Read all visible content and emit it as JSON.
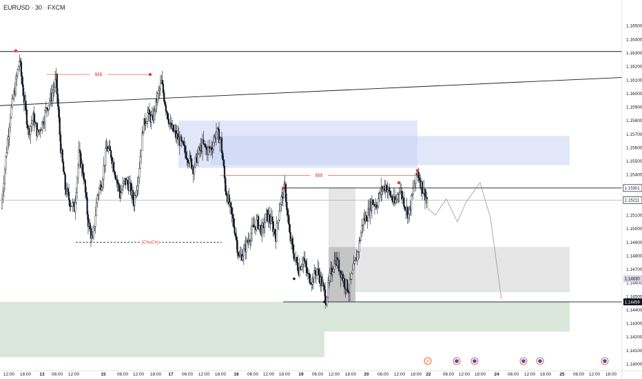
{
  "header": {
    "title": "EURUSD · 30 · FXCM"
  },
  "colors": {
    "bull": "#131722",
    "bear": "#131722",
    "blue_zone": "#c5d1f2",
    "gray_zone": "#dcdcdc",
    "green_zone": "#c8dcc8",
    "annotation": "#e53935",
    "marker": "#e53935"
  },
  "chart_data": {
    "type": "candlestick",
    "symbol": "EURUSD",
    "timeframe": "30",
    "source": "FXCM",
    "ylim": [
      1.1395,
      1.1665
    ],
    "y_ticks": [
      "1.16500",
      "1.16400",
      "1.16300",
      "1.16200",
      "1.16100",
      "1.16000",
      "1.15900",
      "1.15800",
      "1.15700",
      "1.15600",
      "1.15500",
      "1.15400",
      "1.15300",
      "1.15200",
      "1.15100",
      "1.15000",
      "1.14900",
      "1.14800",
      "1.14700",
      "1.14600",
      "1.14500",
      "1.14400",
      "1.14300",
      "1.14200",
      "1.14100",
      "1.14000"
    ],
    "x_ticks": [
      "12:00",
      "18:00",
      "13",
      "06:00",
      "12:00",
      "15",
      "06:00",
      "12:00",
      "18:00",
      "17",
      "06:00",
      "12:00",
      "18:00",
      "18",
      "06:00",
      "12:00",
      "18:00",
      "19",
      "06:00",
      "12:00",
      "18:00",
      "20",
      "06:00",
      "12:00",
      "18:00",
      "22",
      "06:00",
      "12:00",
      "18:00",
      "24",
      "06:00",
      "12:00",
      "18:00",
      "25",
      "06:00",
      "12:00",
      "18:00"
    ],
    "price_path": [
      1.1515,
      1.1552,
      1.1585,
      1.1603,
      1.1625,
      1.1595,
      1.1572,
      1.1582,
      1.157,
      1.1578,
      1.159,
      1.1598,
      1.161,
      1.156,
      1.153,
      1.152,
      1.1515,
      1.1555,
      1.154,
      1.1505,
      1.149,
      1.1525,
      1.1535,
      1.156,
      1.1555,
      1.154,
      1.1525,
      1.1535,
      1.1532,
      1.152,
      1.154,
      1.1575,
      1.1585,
      1.158,
      1.1595,
      1.1608,
      1.159,
      1.1575,
      1.157,
      1.1565,
      1.1558,
      1.1552,
      1.1545,
      1.1555,
      1.1562,
      1.1558,
      1.156,
      1.1572,
      1.1565,
      1.153,
      1.1515,
      1.15,
      1.1478,
      1.1483,
      1.1492,
      1.15,
      1.1505,
      1.1498,
      1.151,
      1.1505,
      1.1495,
      1.152,
      1.153,
      1.1495,
      1.148,
      1.147,
      1.1478,
      1.1465,
      1.1462,
      1.147,
      1.146,
      1.1448,
      1.1467,
      1.1478,
      1.147,
      1.146,
      1.1455,
      1.147,
      1.1485,
      1.1505,
      1.151,
      1.152,
      1.1518,
      1.1528,
      1.1532,
      1.1525,
      1.1518,
      1.153,
      1.152,
      1.151,
      1.1528,
      1.1542,
      1.153,
      1.1522
    ],
    "projection": [
      1.1522,
      1.1515,
      1.151,
      1.1522,
      1.1505,
      1.152,
      1.1534,
      1.1508,
      1.1448
    ],
    "zones": [
      {
        "name": "blue-zone-upper",
        "from": 1.1545,
        "to": 1.158,
        "color": "blue"
      },
      {
        "name": "blue-zone-lower",
        "from": 1.1547,
        "to": 1.15685,
        "color": "blue"
      },
      {
        "name": "gray-zone-tall",
        "from": 1.14459,
        "to": 1.15301,
        "color": "gray"
      },
      {
        "name": "gray-zone-right",
        "from": 1.1453,
        "to": 1.14865,
        "color": "gray"
      },
      {
        "name": "gray-zone-small",
        "from": 1.14459,
        "to": 1.14865,
        "color": "gray-dark"
      },
      {
        "name": "green-zone-left",
        "from": 1.1405,
        "to": 1.14459,
        "color": "green"
      },
      {
        "name": "green-zone-right",
        "from": 1.1424,
        "to": 1.14459,
        "color": "green"
      }
    ],
    "levels": [
      {
        "name": "top-line",
        "price": 1.1631
      },
      {
        "name": "resistance-line",
        "price": 1.15301
      },
      {
        "name": "last-price-line",
        "price": 1.15211
      },
      {
        "name": "support-line",
        "price": 1.14459
      }
    ],
    "labels": [
      {
        "name": "liquidity-label-1",
        "text": "$$$"
      },
      {
        "name": "liquidity-label-2",
        "text": "$$$"
      },
      {
        "name": "choch-label",
        "text": "[ChoCh]"
      }
    ],
    "price_tags": [
      {
        "name": "price-tag-resistance",
        "text": "1.15301",
        "style": "outline"
      },
      {
        "name": "price-tag-last",
        "text": "1.15211",
        "style": "outline"
      },
      {
        "name": "price-tag-mid",
        "text": "1.14630",
        "style": "gray"
      },
      {
        "name": "price-tag-support",
        "text": "1.14459",
        "style": "dark"
      }
    ],
    "events": [
      {
        "name": "event-flash-icon",
        "symbol": "⚡"
      },
      {
        "name": "event-flag-icon-1",
        "symbol": "●"
      },
      {
        "name": "event-flag-icon-2",
        "symbol": "●"
      },
      {
        "name": "event-flag-icon-3",
        "symbol": "●"
      },
      {
        "name": "event-flag-icon-4",
        "symbol": "●"
      },
      {
        "name": "event-flag-icon-5",
        "symbol": "●"
      }
    ]
  }
}
